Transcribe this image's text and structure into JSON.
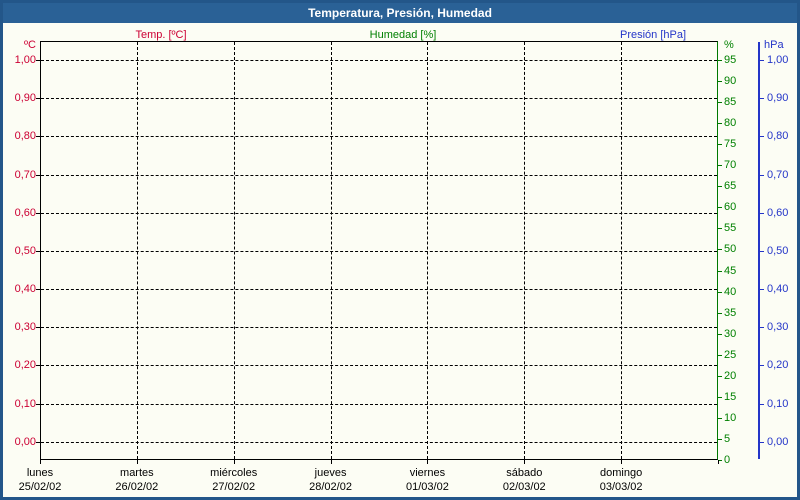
{
  "window": {
    "title": "Temperatura, Presión, Humedad"
  },
  "legend": {
    "items": [
      {
        "label": "Temp. [ºC]",
        "color": "#cc0033"
      },
      {
        "label": "Humedad [%]",
        "color": "#008000"
      },
      {
        "label": "Presión [hPa]",
        "color": "#2435c8"
      }
    ]
  },
  "chart_data": {
    "type": "line",
    "title": "Temperatura, Presión, Humedad",
    "plotted_points": "none — the plot area is empty, no curves are drawn",
    "grid": {
      "horizontal": true,
      "vertical": true,
      "style": "dashed"
    },
    "legend_position": "top",
    "series": [
      {
        "name": "Temp. [ºC]",
        "axis": "left",
        "unit": "ºC",
        "color": "#cc0033",
        "values": []
      },
      {
        "name": "Humedad [%]",
        "axis": "right_inner",
        "unit": "%",
        "color": "#008000",
        "values": []
      },
      {
        "name": "Presión [hPa]",
        "axis": "right_outer",
        "unit": "hPa",
        "color": "#2435c8",
        "values": []
      }
    ],
    "axes": {
      "left": {
        "unit": "ºC",
        "color": "#cc0033",
        "range": [
          0.0,
          1.0
        ],
        "ticks": [
          "1,00",
          "0,90",
          "0,80",
          "0,70",
          "0,60",
          "0,50",
          "0,40",
          "0,30",
          "0,20",
          "0,10",
          "0,00"
        ]
      },
      "right_inner": {
        "unit": "%",
        "color": "#008000",
        "range": [
          0,
          95
        ],
        "ticks": [
          "95",
          "90",
          "85",
          "80",
          "75",
          "70",
          "65",
          "60",
          "55",
          "50",
          "45",
          "40",
          "35",
          "30",
          "25",
          "20",
          "15",
          "10",
          "5",
          "0"
        ]
      },
      "right_outer": {
        "unit": "hPa",
        "color": "#2435c8",
        "range": [
          0.0,
          1.0
        ],
        "ticks": [
          "1,00",
          "0,90",
          "0,80",
          "0,70",
          "0,60",
          "0,50",
          "0,40",
          "0,30",
          "0,20",
          "0,10",
          "0,00"
        ]
      },
      "x": {
        "days": [
          {
            "name": "lunes",
            "date": "25/02/02"
          },
          {
            "name": "martes",
            "date": "26/02/02"
          },
          {
            "name": "miércoles",
            "date": "27/02/02"
          },
          {
            "name": "jueves",
            "date": "28/02/02"
          },
          {
            "name": "viernes",
            "date": "01/03/02"
          },
          {
            "name": "sábado",
            "date": "02/03/02"
          },
          {
            "name": "domingo",
            "date": "03/03/02"
          }
        ]
      }
    }
  },
  "colors": {
    "titlebar_bg": "#2a6196",
    "frame": "#235689",
    "page_bg": "#fcfdf4",
    "temp": "#cc0033",
    "humidity": "#008000",
    "pressure": "#2435c8",
    "grid": "#000000"
  }
}
